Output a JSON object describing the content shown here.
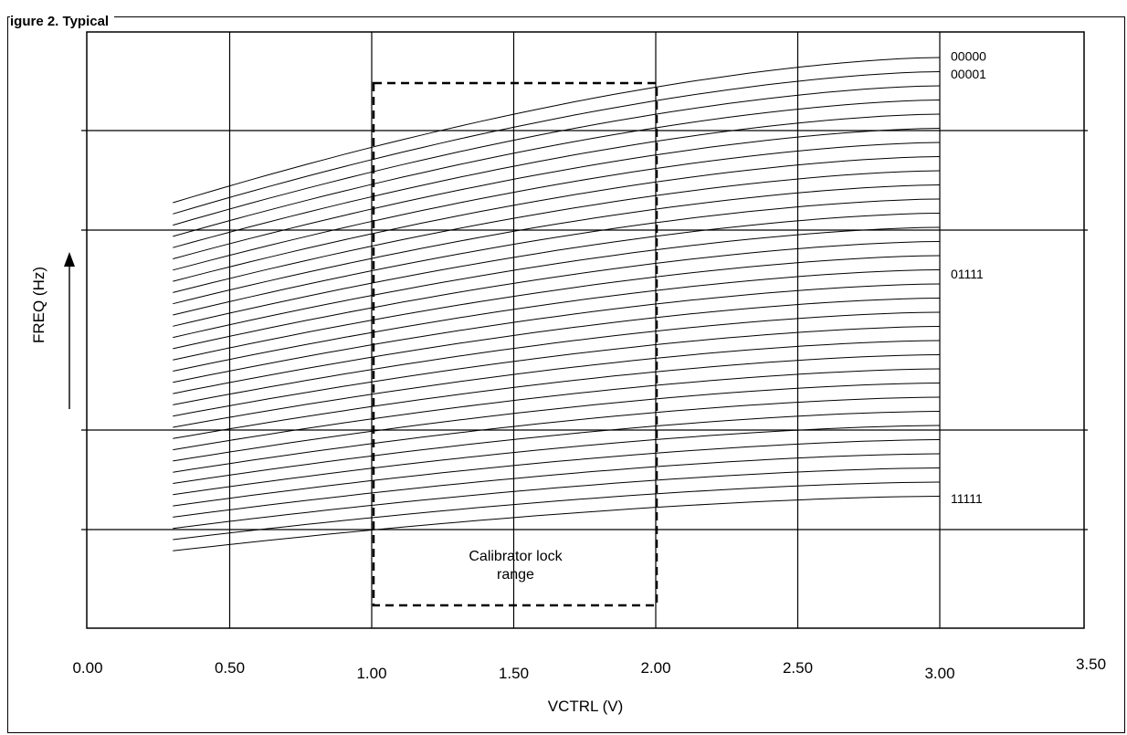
{
  "figure": {
    "title": "igure 2. Typical"
  },
  "chart_data": {
    "type": "line",
    "title": "",
    "xlabel": "VCTRL (V)",
    "ylabel": "FREQ (Hz)",
    "xlim": [
      0.0,
      3.5
    ],
    "x_ticks": [
      "0.00",
      "0.50",
      "1.00",
      "1.50",
      "2.00",
      "2.50",
      "3.00",
      "3.50"
    ],
    "y_ticks": [],
    "grid": true,
    "x_range_of_curves": [
      0.3,
      3.0
    ],
    "series_count": 32,
    "series_labels": [
      {
        "label": "00000",
        "series_index": 0
      },
      {
        "label": "00001",
        "series_index": 1
      },
      {
        "label": "01111",
        "series_index": 15
      },
      {
        "label": "11111",
        "series_index": 31
      }
    ],
    "annotation": {
      "text_line1": "Calibrator lock",
      "text_line2": "range",
      "x_range": [
        1.0,
        2.0
      ]
    }
  }
}
